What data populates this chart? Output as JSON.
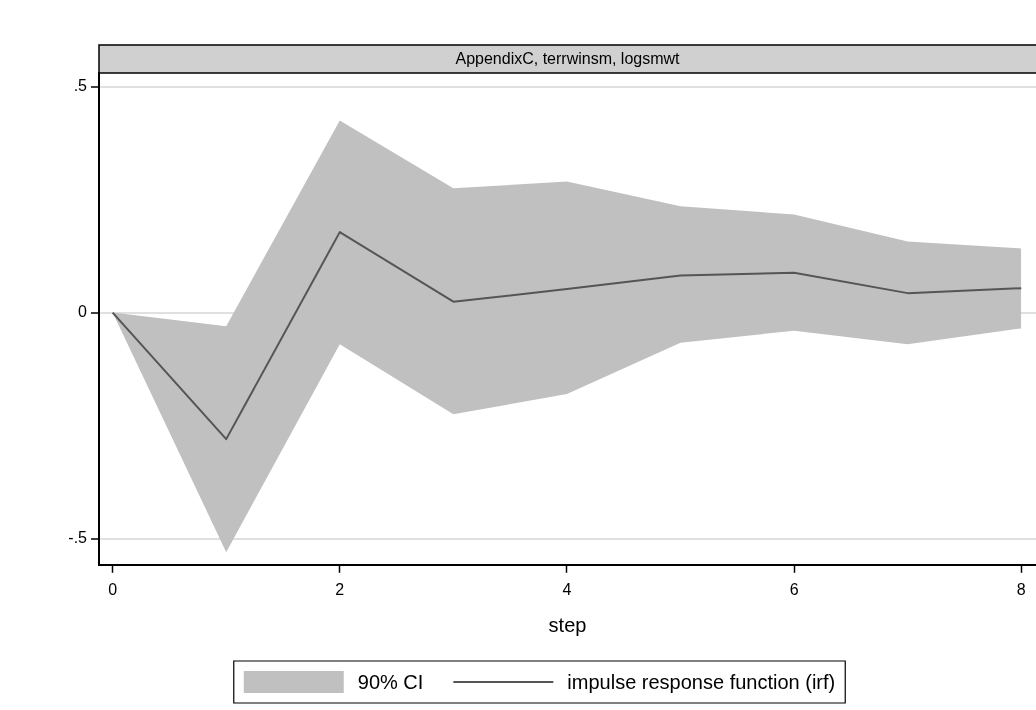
{
  "chart_data": {
    "type": "line",
    "title": "AppendixC, terrwinsm, logsmwt",
    "xlabel": "step",
    "x": [
      0,
      1,
      2,
      3,
      4,
      5,
      6,
      7,
      8
    ],
    "series": [
      {
        "name": "90% CI",
        "type": "area",
        "color": "#c0c0c0",
        "values": [
          null,
          null,
          null,
          null,
          null,
          null,
          null,
          null,
          null
        ],
        "lower": [
          0,
          -0.53,
          -0.07,
          -0.225,
          -0.18,
          -0.067,
          -0.04,
          -0.07,
          -0.035
        ],
        "upper": [
          0,
          -0.03,
          0.425,
          0.275,
          0.29,
          0.235,
          0.217,
          0.157,
          0.142
        ]
      },
      {
        "name": "impulse response function (irf)",
        "type": "line",
        "color": "#555555",
        "values": [
          0,
          -0.28,
          0.178,
          0.024,
          0.052,
          0.082,
          0.088,
          0.043,
          0.054
        ]
      }
    ],
    "xlim": [
      -0.12,
      8.13
    ],
    "ylim": [
      -0.558,
      0.53
    ],
    "xticks": [
      0,
      2,
      4,
      6,
      8
    ],
    "yticks": [
      {
        "value": -0.5,
        "label": "-.5"
      },
      0,
      {
        "value": 0.5,
        "label": ".5"
      }
    ],
    "grid": "y",
    "legend": "bottom",
    "marker": "none",
    "line_style": "solid"
  }
}
